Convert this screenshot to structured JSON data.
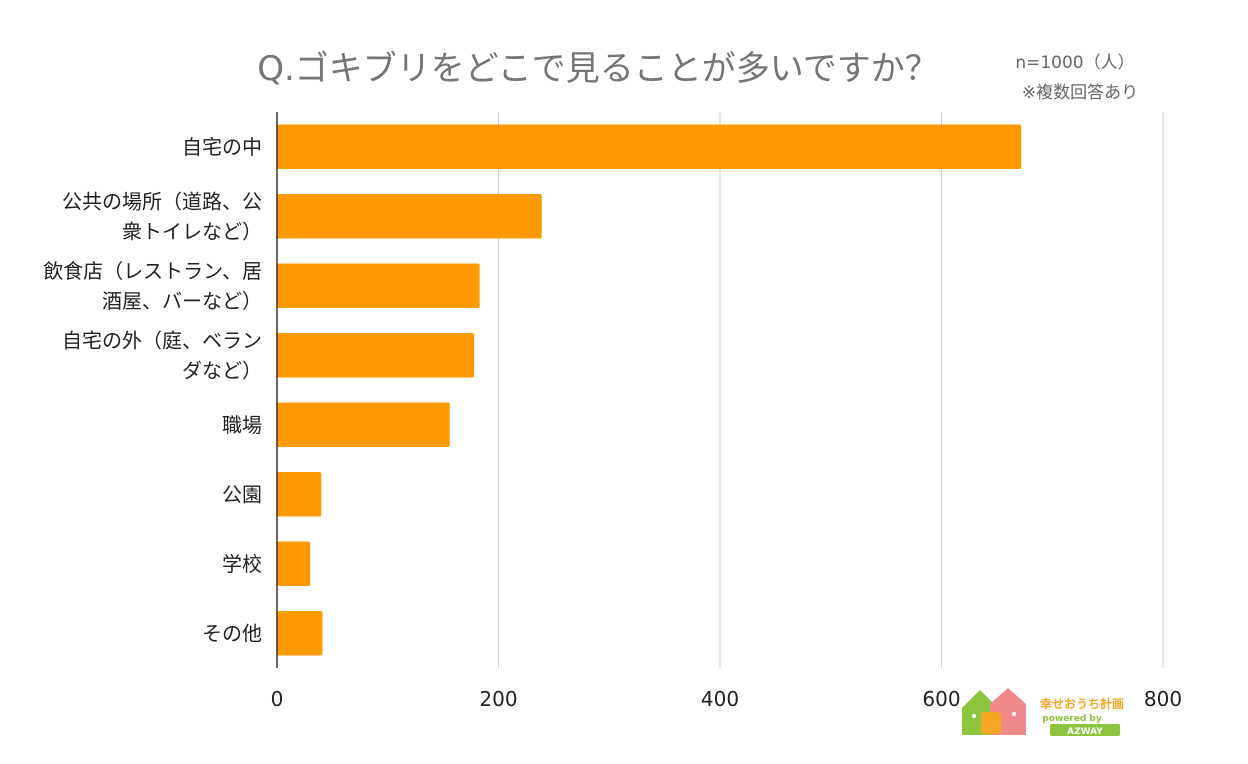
{
  "chart_data": {
    "type": "bar",
    "orientation": "horizontal",
    "title": "Q.ゴキブリをどこで見ることが多いですか？",
    "notes": [
      "n=1000（人）",
      "※複数回答あり"
    ],
    "categories": [
      [
        "自宅の中"
      ],
      [
        "公共の場所（道路、公",
        "衆トイレなど）"
      ],
      [
        "飲食店（レストラン、居",
        "酒屋、バーなど）"
      ],
      [
        "自宅の外（庭、ベラン",
        "ダなど）"
      ],
      [
        "職場"
      ],
      [
        "公園"
      ],
      [
        "学校"
      ],
      [
        "その他"
      ]
    ],
    "values": [
      672,
      239,
      183,
      178,
      156,
      40,
      30,
      41
    ],
    "xlim": [
      0,
      800
    ],
    "xticks": [
      0,
      200,
      400,
      600,
      800
    ],
    "grid": true,
    "bar_color": "#FF9900",
    "gridline_color": "#CCCCCC",
    "axis_color": "#333333"
  },
  "logo": {
    "name": "幸せおうち計画",
    "powered": "powered by",
    "brand": "AZWAY",
    "colors": {
      "green": "#8CC63F",
      "pink": "#F08A8A",
      "orange": "#F5A623"
    }
  }
}
